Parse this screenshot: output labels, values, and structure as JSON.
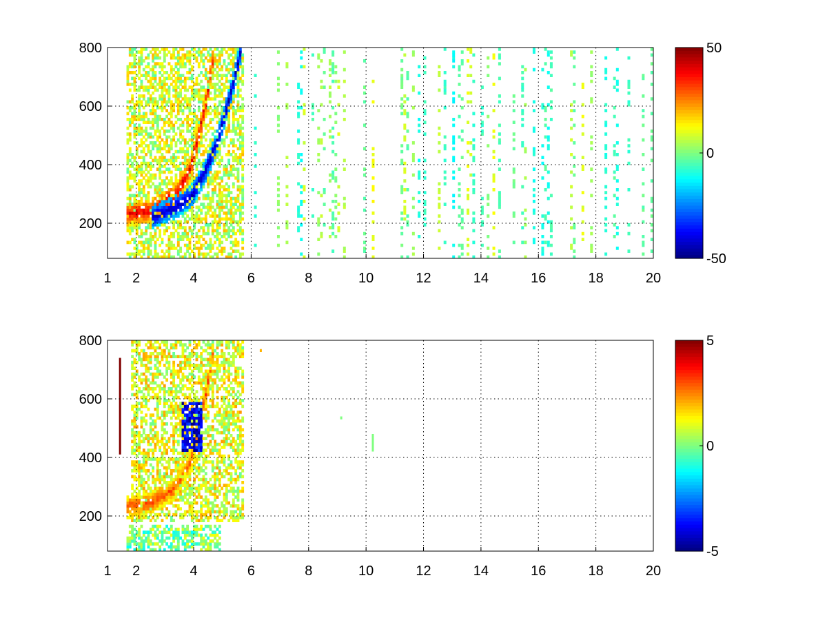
{
  "chart_data": [
    {
      "type": "heatmap",
      "title": "",
      "xlabel": "",
      "ylabel": "",
      "xlim": [
        1,
        20
      ],
      "ylim": [
        80,
        800
      ],
      "x_ticks": [
        1,
        2,
        4,
        6,
        8,
        10,
        12,
        14,
        16,
        18,
        20
      ],
      "y_ticks": [
        200,
        400,
        600,
        800
      ],
      "grid": true,
      "colormap": "jet",
      "clim": [
        -50,
        50
      ],
      "colorbar_ticks": [
        50,
        0,
        -50
      ],
      "nan_color": "#ffffff",
      "features": [
        {
          "kind": "ridge",
          "description": "positive ridge",
          "points": [
            [
              1.6,
              225
            ],
            [
              2.5,
              240
            ],
            [
              3.3,
              290
            ],
            [
              3.8,
              370
            ],
            [
              4.1,
              480
            ],
            [
              4.4,
              620
            ],
            [
              4.7,
              790
            ]
          ],
          "value": 40
        },
        {
          "kind": "ridge",
          "description": "negative ridge",
          "points": [
            [
              2.5,
              215
            ],
            [
              3.3,
              250
            ],
            [
              3.9,
              290
            ],
            [
              4.4,
              380
            ],
            [
              4.8,
              480
            ],
            [
              5.2,
              620
            ],
            [
              5.6,
              780
            ]
          ],
          "value": -45
        },
        {
          "kind": "band",
          "x_range": [
            1.6,
            5.7
          ],
          "y_range": [
            80,
            800
          ],
          "value": 8
        }
      ],
      "scatter_noise": {
        "x_range": [
          5.8,
          20
        ],
        "y_range": [
          80,
          800
        ],
        "value_range": [
          -12,
          12
        ]
      }
    },
    {
      "type": "heatmap",
      "title": "",
      "xlabel": "",
      "ylabel": "",
      "xlim": [
        1,
        20
      ],
      "ylim": [
        80,
        800
      ],
      "x_ticks": [
        1,
        2,
        4,
        6,
        8,
        10,
        12,
        14,
        16,
        18,
        20
      ],
      "y_ticks": [
        200,
        400,
        600,
        800
      ],
      "grid": true,
      "colormap": "jet",
      "clim": [
        -5,
        5
      ],
      "colorbar_ticks": [
        5,
        0,
        -5
      ],
      "nan_color": "#ffffff",
      "features": [
        {
          "kind": "ridge",
          "description": "positive ridge",
          "points": [
            [
              1.6,
              225
            ],
            [
              2.5,
              240
            ],
            [
              3.3,
              290
            ],
            [
              3.8,
              370
            ],
            [
              4.1,
              480
            ],
            [
              4.4,
              620
            ],
            [
              4.7,
              790
            ]
          ],
          "value": 3
        },
        {
          "kind": "patch",
          "description": "negative patch",
          "x_center": 3.9,
          "y_center": 500,
          "value": -4
        },
        {
          "kind": "band",
          "x_range": [
            1.8,
            5.7
          ],
          "y_range": [
            180,
            800
          ],
          "value": 1
        },
        {
          "kind": "band",
          "x_range": [
            1.6,
            4.9
          ],
          "y_range": [
            80,
            160
          ],
          "value": 0
        }
      ],
      "isolated_points": [
        {
          "x": 1.4,
          "y_range": [
            410,
            740
          ],
          "value": 5
        },
        {
          "x": 6.3,
          "y": 760,
          "value": 2
        },
        {
          "x": 9.1,
          "y": 530,
          "value": 0
        },
        {
          "x": 10.2,
          "y_range": [
            420,
            480
          ],
          "value": 0
        }
      ]
    }
  ]
}
